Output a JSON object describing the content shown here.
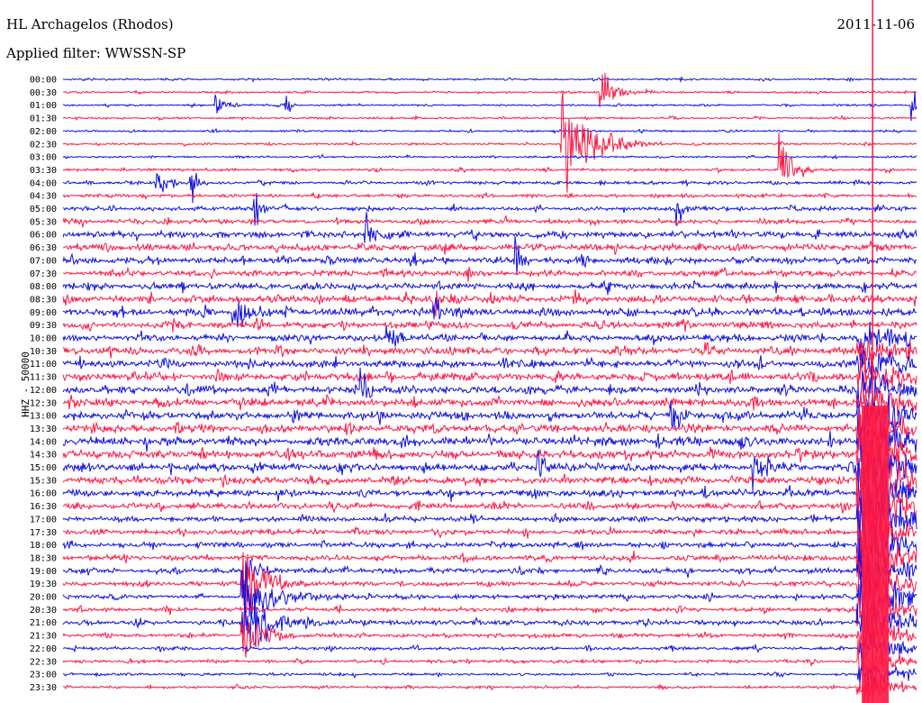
{
  "header": {
    "station": "HL Archagelos (Rhodos)",
    "filter": "Applied filter: WWSSN-SP",
    "date": "2011-11-06"
  },
  "colors": {
    "even_row": "#1010e0",
    "odd_row": "#ff1744",
    "background": "#ffffff",
    "text": "#000000"
  },
  "chart_data": {
    "type": "line",
    "title": "HL Archagelos (Rhodos)",
    "subtitle": "Applied filter: WWSSN-SP",
    "ylabel": "HHZ - 50000",
    "xlabel": "",
    "rows": [
      "00:00",
      "00:30",
      "01:00",
      "01:30",
      "02:00",
      "02:30",
      "03:00",
      "03:30",
      "04:00",
      "04:30",
      "05:00",
      "05:30",
      "06:00",
      "06:30",
      "07:00",
      "07:30",
      "08:00",
      "08:30",
      "09:00",
      "09:30",
      "10:00",
      "10:30",
      "11:00",
      "11:30",
      "12:00",
      "12:30",
      "13:00",
      "13:30",
      "14:00",
      "14:30",
      "15:00",
      "15:30",
      "16:00",
      "16:30",
      "17:00",
      "17:30",
      "18:00",
      "18:30",
      "19:00",
      "19:30",
      "20:00",
      "20:30",
      "21:00",
      "21:30",
      "22:00",
      "22:30",
      "23:00",
      "23:30"
    ],
    "row_noise": [
      0.3,
      0.3,
      0.3,
      0.3,
      0.3,
      0.3,
      0.3,
      0.4,
      0.5,
      0.5,
      0.6,
      0.7,
      1.0,
      1.0,
      1.0,
      0.9,
      1.0,
      1.1,
      1.1,
      1.0,
      1.0,
      1.1,
      1.1,
      1.2,
      1.2,
      1.2,
      1.2,
      1.2,
      1.3,
      1.3,
      1.2,
      1.1,
      1.0,
      0.9,
      0.8,
      0.8,
      0.8,
      0.8,
      0.8,
      0.7,
      0.7,
      0.6,
      0.7,
      0.6,
      0.5,
      0.5,
      0.4,
      0.4
    ],
    "events": [
      {
        "row": 1,
        "x": 0.63,
        "amp": 20,
        "decay": 0.012
      },
      {
        "row": 2,
        "x": 0.18,
        "amp": 6,
        "decay": 0.01
      },
      {
        "row": 2,
        "x": 0.26,
        "amp": 8,
        "decay": 0.006
      },
      {
        "row": 2,
        "x": 0.995,
        "amp": 12,
        "decay": 0.006
      },
      {
        "row": 5,
        "x": 0.585,
        "amp": 28,
        "decay": 0.03
      },
      {
        "row": 7,
        "x": 0.84,
        "amp": 22,
        "decay": 0.01
      },
      {
        "row": 8,
        "x": 0.11,
        "amp": 10,
        "decay": 0.01
      },
      {
        "row": 8,
        "x": 0.15,
        "amp": 12,
        "decay": 0.006
      },
      {
        "row": 10,
        "x": 0.225,
        "amp": 14,
        "decay": 0.006
      },
      {
        "row": 10,
        "x": 0.72,
        "amp": 12,
        "decay": 0.008
      },
      {
        "row": 12,
        "x": 0.355,
        "amp": 16,
        "decay": 0.008
      },
      {
        "row": 14,
        "x": 0.53,
        "amp": 14,
        "decay": 0.006
      },
      {
        "row": 17,
        "x": 0.435,
        "amp": 10,
        "decay": 0.01
      },
      {
        "row": 18,
        "x": 0.2,
        "amp": 12,
        "decay": 0.012
      },
      {
        "row": 18,
        "x": 0.435,
        "amp": 10,
        "decay": 0.008
      },
      {
        "row": 20,
        "x": 0.38,
        "amp": 10,
        "decay": 0.008
      },
      {
        "row": 24,
        "x": 0.35,
        "amp": 10,
        "decay": 0.01
      },
      {
        "row": 26,
        "x": 0.71,
        "amp": 12,
        "decay": 0.01
      },
      {
        "row": 30,
        "x": 0.555,
        "amp": 12,
        "decay": 0.008
      },
      {
        "row": 30,
        "x": 0.81,
        "amp": 12,
        "decay": 0.008
      },
      {
        "row": 38,
        "x": 0.21,
        "amp": 18,
        "decay": 0.01
      },
      {
        "row": 39,
        "x": 0.21,
        "amp": 34,
        "decay": 0.018
      },
      {
        "row": 40,
        "x": 0.21,
        "amp": 20,
        "decay": 0.03
      },
      {
        "row": 42,
        "x": 0.21,
        "amp": 18,
        "decay": 0.03
      },
      {
        "row": 43,
        "x": 0.21,
        "amp": 14,
        "decay": 0.02
      }
    ],
    "big_event": {
      "x": 0.94,
      "start_row": 20,
      "peak_row": 34,
      "end_row": 47
    }
  }
}
